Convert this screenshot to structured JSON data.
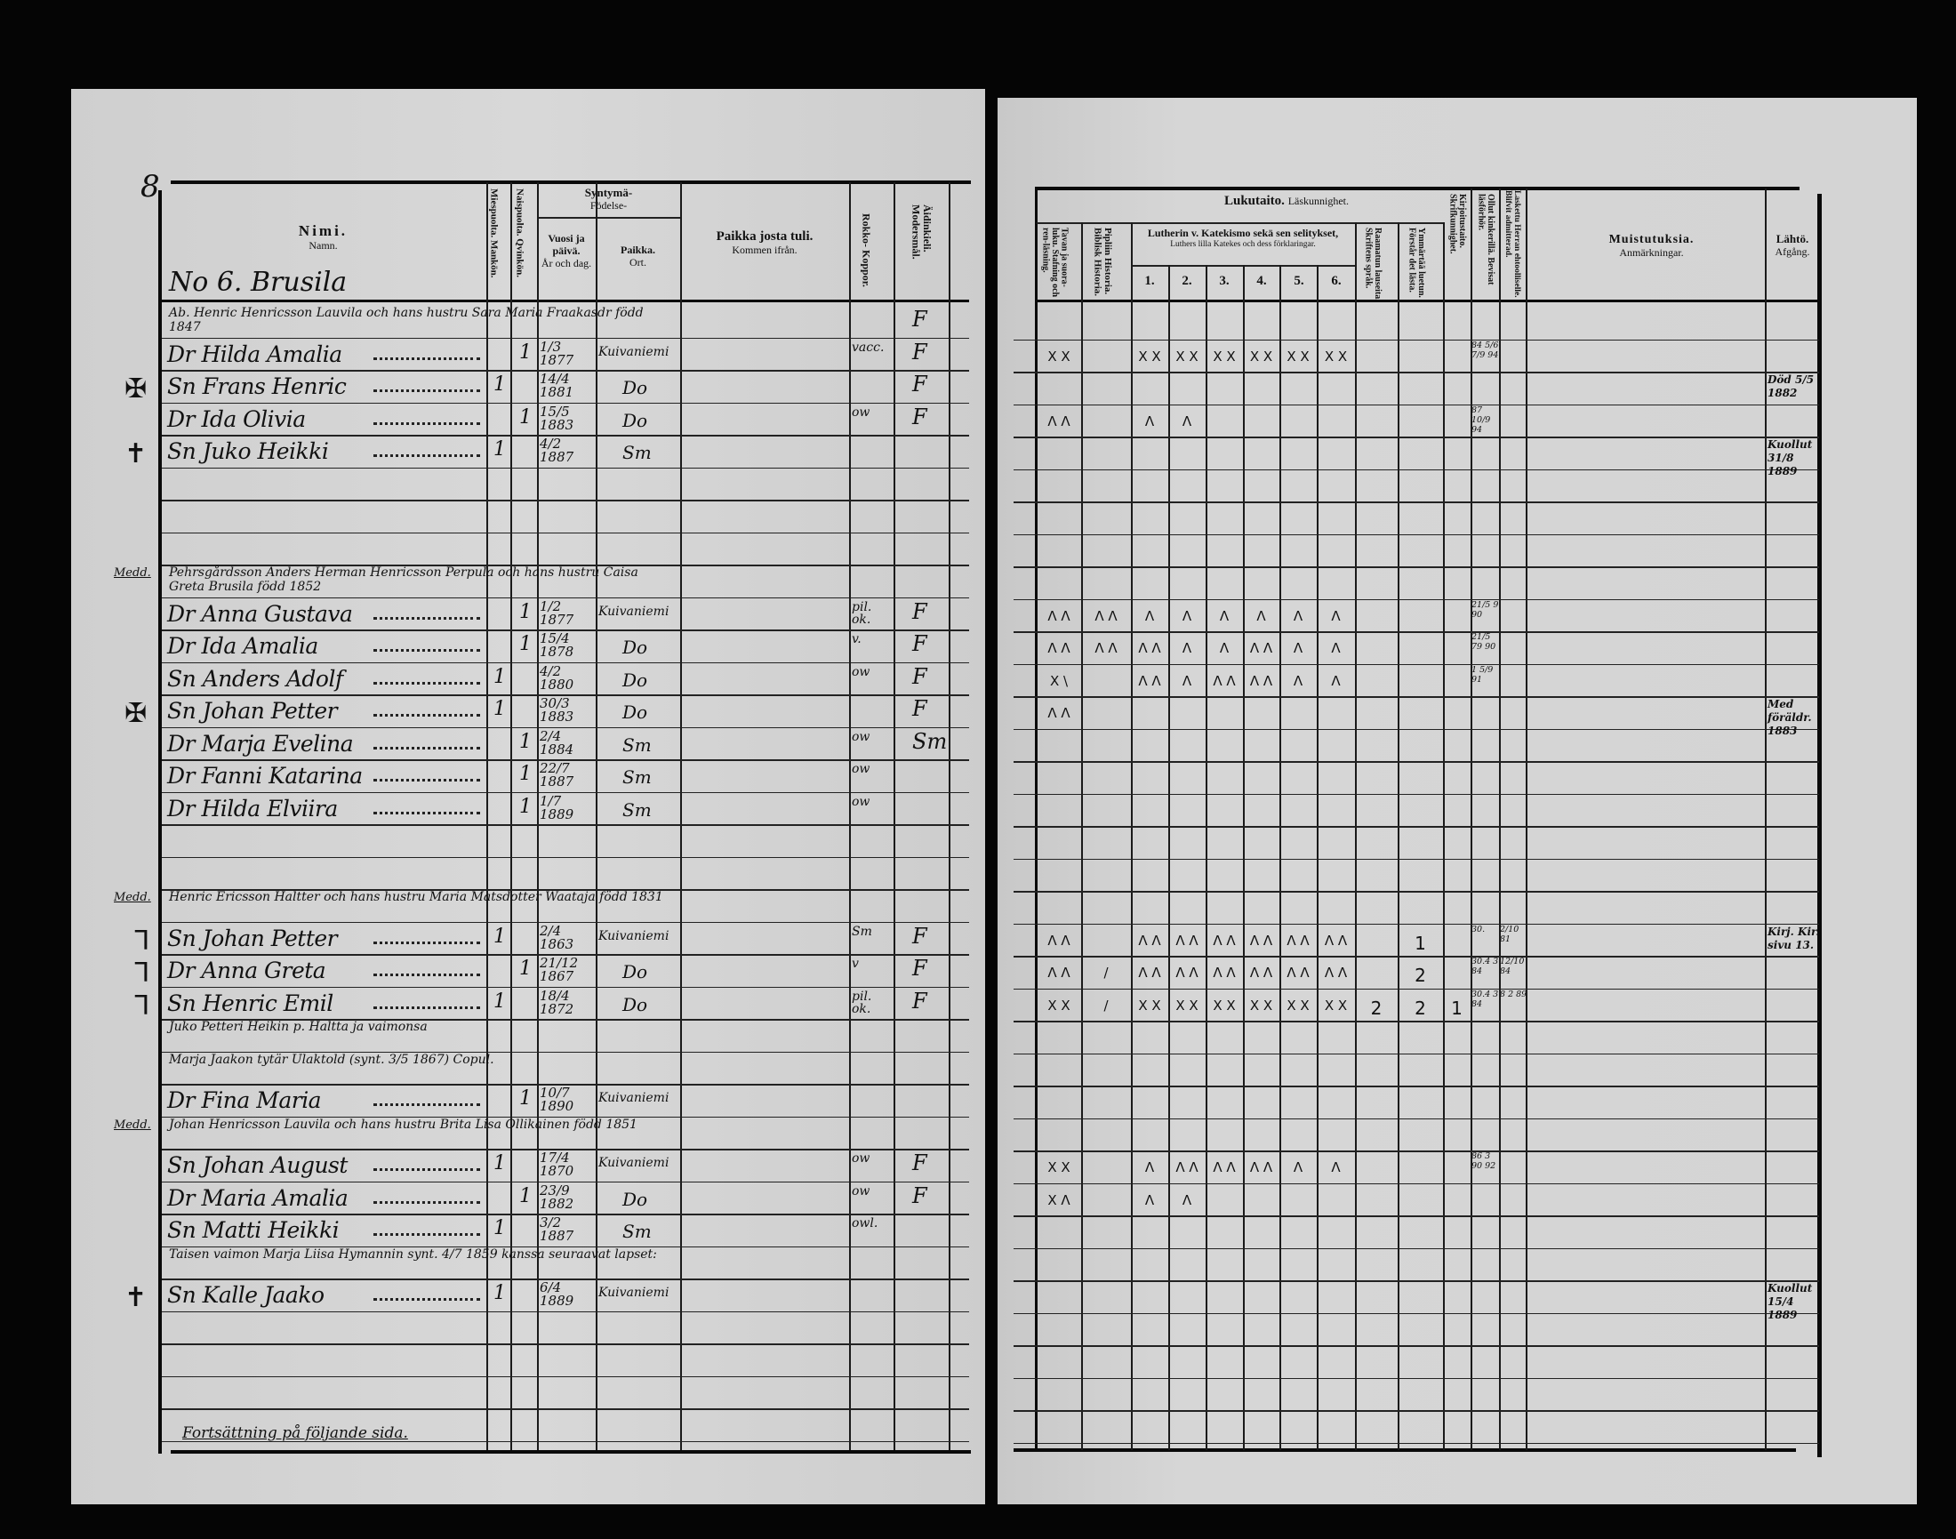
{
  "page_number": "8",
  "left_header": {
    "name_fi": "Nimi.",
    "name_sv": "Namn.",
    "male": "Miespuolta. Mankön.",
    "female": "Naispuolta. Qvinkön.",
    "birth_fi": "Syntymä-",
    "birth_sv": "Födelse-",
    "date_fi": "Vuosi ja päivä.",
    "date_sv": "År och dag.",
    "place_fi": "Paikka.",
    "place_sv": "Ort.",
    "from_fi": "Paikka josta tuli.",
    "from_sv": "Kommen ifrån.",
    "pox": "Rokko- Koppor.",
    "lang": "Äidinkieli. Modersmål."
  },
  "right_header": {
    "reading_fi": "Lukutaito.",
    "reading_sv": "Läskunnighet.",
    "spelling": "Tavan ja suora-luku. Stafning och ren-läsning.",
    "bible": "Pipliin Historia. Biblisk Historia.",
    "luther_fi": "Lutherin v. Katekismo sekä sen selitykset,",
    "luther_sv": "Luthers lilla Katekes och dess förklaringar.",
    "luther_parts": [
      "1.",
      "2.",
      "3.",
      "4.",
      "5.",
      "6."
    ],
    "scripture": "Raamatun lauseita. Skriftens språk.",
    "understands": "Ymmärtää luetun. Förstår det lästa.",
    "writing": "Kirjoitustaito. Skrifkunnighet.",
    "examined": "Ollut kinkerillä. Bevisat läsförhör.",
    "admitted": "Laskettu Herran ehtoolliselle. Blifvit admitterad.",
    "remarks_fi": "Muistutuksia.",
    "remarks_sv": "Anmärkningar.",
    "depart_fi": "Lähtö.",
    "depart_sv": "Afgång."
  },
  "household_title": "No 6. Brusila",
  "footer_note": "Fortsättning på följande sida.",
  "left_rows": [
    {
      "note": "Ab. Henric Henricsson Lauvila och hans hustru Sara Maria Fraakasdr född 1847",
      "lang": "F"
    },
    {
      "name": "Dr Hilda Amalia",
      "female": "1",
      "born": "1/3 1877",
      "place": "Kuivaniemi",
      "pox": "vacc.",
      "lang": "F"
    },
    {
      "mark": "✠",
      "name": "Sn Frans Henric",
      "male": "1",
      "born": "14/4 1881",
      "place": "Do",
      "lang": "F"
    },
    {
      "name": "Dr Ida Olivia",
      "female": "1",
      "born": "15/5 1883",
      "place": "Do",
      "pox": "ow",
      "lang": "F"
    },
    {
      "mark": "✝",
      "name": "Sn Juko Heikki",
      "male": "1",
      "born": "4/2 1887",
      "place": "Sm"
    },
    {},
    {},
    {},
    {
      "side": "Medd.",
      "note": "Pehrsgårdsson Anders Herman Henricsson Perpula och hans hustru Caisa Greta Brusila född 1852"
    },
    {
      "name": "Dr Anna Gustava",
      "female": "1",
      "born": "1/2 1877",
      "place": "Kuivaniemi",
      "pox": "pil. ok.",
      "lang": "F"
    },
    {
      "name": "Dr Ida Amalia",
      "female": "1",
      "born": "15/4 1878",
      "place": "Do",
      "pox": "v.",
      "lang": "F"
    },
    {
      "name": "Sn Anders Adolf",
      "male": "1",
      "born": "4/2 1880",
      "place": "Do",
      "pox": "ow",
      "lang": "F"
    },
    {
      "mark": "✠",
      "name": "Sn Johan Petter",
      "male": "1",
      "born": "30/3 1883",
      "place": "Do",
      "lang": "F"
    },
    {
      "name": "Dr Marja Evelina",
      "female": "1",
      "born": "2/4 1884",
      "place": "Sm",
      "pox": "ow",
      "lang": "Sm"
    },
    {
      "name": "Dr Fanni Katarina",
      "female": "1",
      "born": "22/7 1887",
      "place": "Sm",
      "pox": "ow"
    },
    {
      "name": "Dr Hilda Elviira",
      "female": "1",
      "born": "1/7 1889",
      "place": "Sm",
      "pox": "ow"
    },
    {},
    {},
    {
      "side": "Medd.",
      "note": "Henric Ericsson Haltter och hans hustru Maria Matsdotter Waataja född 1831"
    },
    {
      "mark": "ᒣ",
      "name": "Sn Johan Petter",
      "male": "1",
      "born": "2/4 1863",
      "place": "Kuivaniemi",
      "pox": "Sm",
      "lang": "F"
    },
    {
      "mark": "ᒣ",
      "name": "Dr Anna Greta",
      "female": "1",
      "born": "21/12 1867",
      "place": "Do",
      "pox": "v",
      "lang": "F"
    },
    {
      "mark": "ᒣ",
      "name": "Sn Henric Emil",
      "male": "1",
      "born": "18/4 1872",
      "place": "Do",
      "pox": "pil. ok.",
      "lang": "F"
    },
    {
      "note": "Juko Petteri Heikin p. Haltta ja vaimonsa"
    },
    {
      "note": "Marja Jaakon tytär Ulaktold (synt. 3/5 1867) Copul."
    },
    {
      "name": "Dr Fina Maria",
      "female": "1",
      "born": "10/7 1890",
      "place": "Kuivaniemi"
    },
    {
      "side": "Medd.",
      "note": "Johan Henricsson Lauvila och hans hustru Brita Lisa Ollikainen född 1851"
    },
    {
      "name": "Sn Johan August",
      "male": "1",
      "born": "17/4 1870",
      "place": "Kuivaniemi",
      "pox": "ow",
      "lang": "F"
    },
    {
      "name": "Dr Maria Amalia",
      "female": "1",
      "born": "23/9 1882",
      "place": "Do",
      "pox": "ow",
      "lang": "F"
    },
    {
      "name": "Sn Matti Heikki",
      "male": "1",
      "born": "3/2 1887",
      "place": "Sm",
      "pox": "owl."
    },
    {
      "note": "Taisen vaimon Marja Liisa Hymannin synt. 4/7 1859 kanssa seuraavat lapset:"
    },
    {
      "mark": "✝",
      "name": "Sn Kalle Jaako",
      "male": "1",
      "born": "6/4 1889",
      "place": "Kuivaniemi"
    },
    {},
    {},
    {},
    {}
  ],
  "right_rows": [
    {},
    {
      "st": "X X",
      "k1": "X X",
      "k2": "X X",
      "k3": "X X",
      "k4": "X X",
      "k5": "X X",
      "k6": "X X",
      "bev": "84 5/6 7/9 94"
    },
    {
      "lah": "Död 5/5 1882"
    },
    {
      "st": "Λ Λ",
      "k1": "Λ",
      "k2": "Λ",
      "bev": "87 10/9 94"
    },
    {
      "lah": "Kuollut 31/8 1889"
    },
    {},
    {},
    {},
    {},
    {
      "st": "Λ Λ",
      "bib": "Λ Λ",
      "k1": "Λ",
      "k2": "Λ",
      "k3": "Λ",
      "k4": "Λ",
      "k5": "Λ",
      "k6": "Λ",
      "bev": "21/5 9 90"
    },
    {
      "st": "Λ Λ",
      "bib": "Λ Λ",
      "k1": "Λ Λ",
      "k2": "Λ",
      "k3": "Λ",
      "k4": "Λ Λ",
      "k5": "Λ",
      "k6": "Λ",
      "bev": "21/5 79 90"
    },
    {
      "st": "X \\",
      "k1": "Λ Λ",
      "k2": "Λ",
      "k3": "Λ Λ",
      "k4": "Λ Λ",
      "k5": "Λ",
      "k6": "Λ",
      "bev": "1 5/9 91"
    },
    {
      "st": "Λ Λ",
      "lah": "Med föräldr. 1883"
    },
    {},
    {},
    {},
    {},
    {},
    {},
    {
      "st": "Λ Λ",
      "k1": "Λ Λ",
      "k2": "Λ Λ",
      "k3": "Λ Λ",
      "k4": "Λ Λ",
      "k5": "Λ Λ",
      "k6": "Λ Λ",
      "for": "1",
      "bev": "30.",
      "bli": "2/10 81",
      "lah": "Kirj. Kir. sivu 13."
    },
    {
      "st": "Λ Λ",
      "bib": "/",
      "k1": "Λ Λ",
      "k2": "Λ Λ",
      "k3": "Λ Λ",
      "k4": "Λ Λ",
      "k5": "Λ Λ",
      "k6": "Λ Λ",
      "for": "2",
      "bev": "30.4 3 84",
      "bli": "12/10 84"
    },
    {
      "st": "X X",
      "bib": "/",
      "k1": "X X",
      "k2": "X X",
      "k3": "X X",
      "k4": "X X",
      "k5": "X X",
      "k6": "X X",
      "skr": "2",
      "for": "2",
      "skk": "1",
      "bev": "30.4 3 84",
      "bli": "8 2 89"
    },
    {},
    {},
    {},
    {},
    {
      "st": "X X",
      "k1": "Λ",
      "k2": "Λ Λ",
      "k3": "Λ Λ",
      "k4": "Λ Λ",
      "k5": "Λ",
      "k6": "Λ",
      "bev": "86 3 90 92"
    },
    {
      "st": "X Λ",
      "k1": "Λ",
      "k2": "Λ"
    },
    {},
    {},
    {
      "lah": "Kuollut 15/4 1889"
    },
    {},
    {},
    {},
    {}
  ]
}
